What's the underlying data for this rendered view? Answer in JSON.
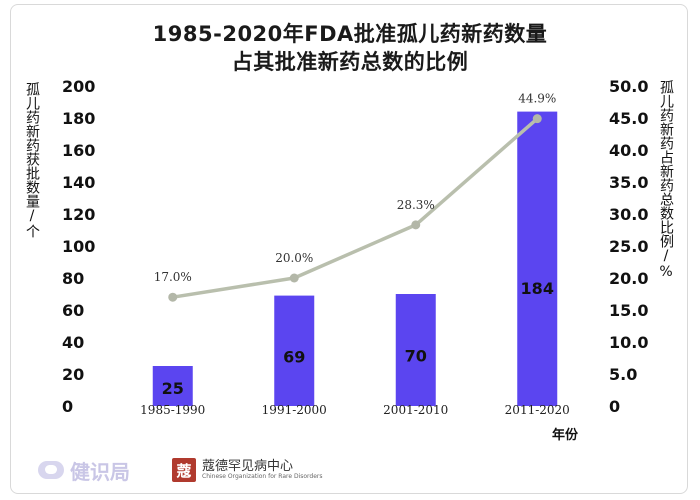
{
  "title_line1": "1985-2020年FDA批准孤儿药新药数量",
  "title_line2": "占其批准新药总数的比例",
  "y_left_label": "孤儿药新药获批数量/个",
  "y_right_label": "孤儿药新药占新药总数比例/%",
  "x_unit_label": "年份",
  "footer": {
    "left_brand": "健识局",
    "left_icon": "chat-bubble-logo-icon",
    "right_seal_char": "蔻",
    "right_brand_cn": "蔻德罕见病中心",
    "right_brand_en": "Chinese Organization for Rare Disorders"
  },
  "colors": {
    "bar": "#5b45f0",
    "line": "#b9bfad",
    "line_marker": "#b3b7a8",
    "grid": "#dcdcdc"
  },
  "chart_data": {
    "type": "bar",
    "categories": [
      "1985-1990",
      "1991-2000",
      "2001-2010",
      "2011-2020"
    ],
    "series": [
      {
        "values": [
          25,
          69,
          70,
          184
        ],
        "axis": "left",
        "kind": "bar"
      },
      {
        "values": [
          17.0,
          20.0,
          28.3,
          44.9
        ],
        "axis": "right",
        "kind": "line",
        "labels": [
          "17.0%",
          "20.0%",
          "28.3%",
          "44.9%"
        ]
      }
    ],
    "y_left": {
      "min": 0,
      "max": 200,
      "ticks": [
        "0",
        "20",
        "40",
        "60",
        "80",
        "100",
        "120",
        "140",
        "160",
        "180",
        "200"
      ]
    },
    "y_right": {
      "min": 0,
      "max": 50,
      "ticks": [
        "0",
        "5.0",
        "10.0",
        "15.0",
        "20.0",
        "25.0",
        "30.0",
        "35.0",
        "40.0",
        "45.0",
        "50.0"
      ]
    },
    "grid": false
  }
}
